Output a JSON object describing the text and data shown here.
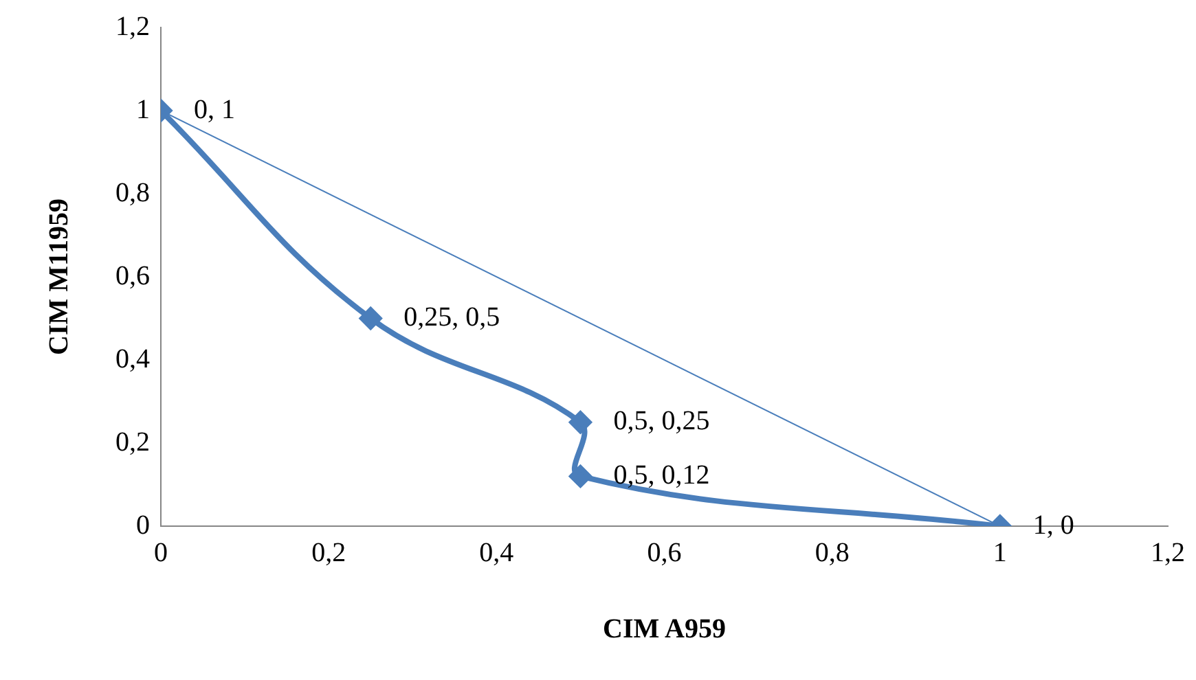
{
  "chart_data": {
    "type": "line",
    "xlabel": "CIM A959",
    "ylabel": "CIM M11959",
    "xlim": [
      0,
      1.2
    ],
    "xticks": [
      0,
      {
        "value": 0.2,
        "label": "0,2"
      },
      {
        "value": 0.4,
        "label": "0,4"
      },
      {
        "value": 0.6,
        "label": "0,6"
      },
      {
        "value": 0.8,
        "label": "0,8"
      },
      1,
      {
        "value": 1.2,
        "label": "1,2"
      }
    ],
    "ylim": [
      0,
      1.2
    ],
    "yticks": [
      0,
      {
        "value": 0.2,
        "label": "0,2"
      },
      {
        "value": 0.4,
        "label": "0,4"
      },
      {
        "value": 0.6,
        "label": "0,6"
      },
      {
        "value": 0.8,
        "label": "0,8"
      },
      1,
      {
        "value": 1.2,
        "label": "1,2"
      }
    ],
    "grid": false,
    "legend": false,
    "series": [
      {
        "color": "#4a7ebb",
        "marker": "diamond",
        "x": [
          0,
          0.25,
          0.5,
          0.5,
          1
        ],
        "values": [
          1,
          0.5,
          0.25,
          0.12,
          0
        ],
        "value_labels": [
          "0, 1",
          "0,25, 0,5",
          "0,5, 0,25",
          "0,5, 0,12",
          "1, 0"
        ]
      },
      {
        "color": "#4a7ebb",
        "marker": "none",
        "x": [
          0,
          1
        ],
        "values": [
          1,
          0
        ]
      }
    ]
  }
}
